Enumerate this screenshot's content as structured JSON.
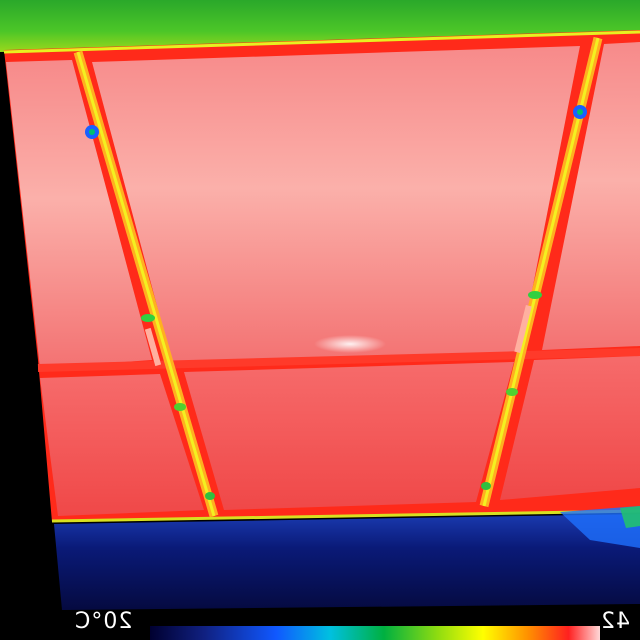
{
  "thermal_image": {
    "scale": {
      "min_label": "20°C",
      "max_label": "42"
    },
    "palette": [
      "#000040",
      "#1040ff",
      "#00c8ff",
      "#00c060",
      "#a0e020",
      "#ffff00",
      "#ff8000",
      "#ff2020",
      "#ffffff"
    ],
    "subject": "solar-panels-thermal",
    "icon": "thermal-camera-icon"
  }
}
